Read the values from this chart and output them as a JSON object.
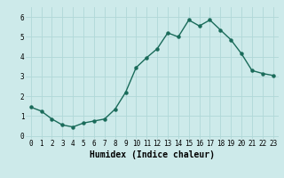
{
  "x": [
    0,
    1,
    2,
    3,
    4,
    5,
    6,
    7,
    8,
    9,
    10,
    11,
    12,
    13,
    14,
    15,
    16,
    17,
    18,
    19,
    20,
    21,
    22,
    23
  ],
  "y": [
    1.45,
    1.25,
    0.85,
    0.55,
    0.45,
    0.65,
    0.75,
    0.85,
    1.35,
    2.2,
    3.45,
    3.95,
    4.4,
    5.2,
    5.0,
    5.85,
    5.55,
    5.85,
    5.35,
    4.85,
    4.15,
    3.3,
    3.15,
    3.05
  ],
  "line_color": "#1a6b5a",
  "marker": "o",
  "marker_size": 2.2,
  "bg_color": "#cdeaea",
  "grid_color": "#b0d8d8",
  "xlabel": "Humidex (Indice chaleur)",
  "ylim": [
    -0.15,
    6.5
  ],
  "xlim": [
    -0.5,
    23.5
  ],
  "yticks": [
    0,
    1,
    2,
    3,
    4,
    5,
    6
  ],
  "xticks": [
    0,
    1,
    2,
    3,
    4,
    5,
    6,
    7,
    8,
    9,
    10,
    11,
    12,
    13,
    14,
    15,
    16,
    17,
    18,
    19,
    20,
    21,
    22,
    23
  ],
  "xtick_labels": [
    "0",
    "1",
    "2",
    "3",
    "4",
    "5",
    "6",
    "7",
    "8",
    "9",
    "10",
    "11",
    "12",
    "13",
    "14",
    "15",
    "16",
    "17",
    "18",
    "19",
    "20",
    "21",
    "22",
    "23"
  ],
  "tick_fontsize": 5.5,
  "xlabel_fontsize": 7,
  "line_width": 1.0
}
